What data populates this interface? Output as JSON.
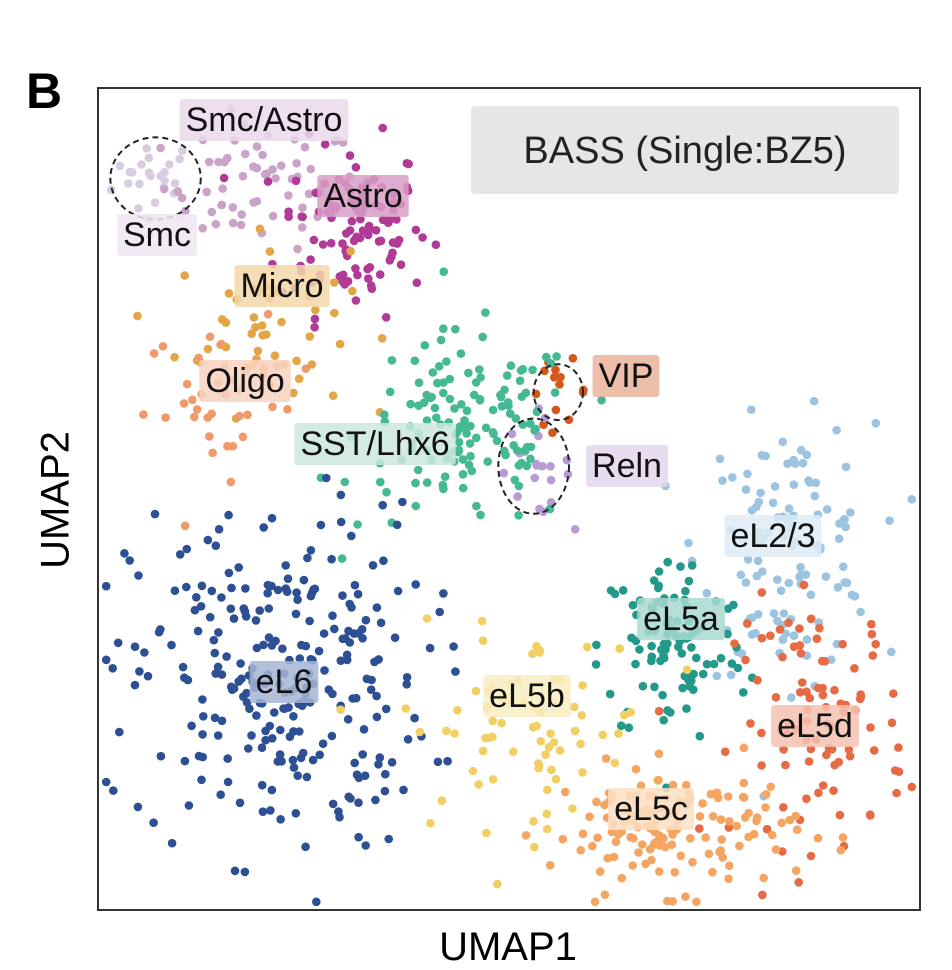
{
  "panel_label": "B",
  "chart_data": {
    "type": "scatter",
    "title": "BASS (Single:BZ5)",
    "xlabel": "UMAP1",
    "ylabel": "UMAP2",
    "xlim": [
      0,
      100
    ],
    "ylim": [
      0,
      100
    ],
    "grid": false,
    "legend": "none",
    "annotation_box_location": "top-right",
    "clusters": [
      {
        "name": "Smc",
        "color": "#d9cce0",
        "label_bg": "#efe6f2",
        "center": [
          7,
          89
        ],
        "spread": [
          3.5,
          3.5
        ],
        "count": 25,
        "ring": true,
        "ring_radius": [
          5.5,
          5
        ]
      },
      {
        "name": "Smc/Astro",
        "color": "#c9a4c8",
        "label_bg": "#ead9ea",
        "center": [
          20,
          88
        ],
        "spread": [
          8,
          5
        ],
        "count": 60,
        "ring": false
      },
      {
        "name": "Astro",
        "color": "#b03a96",
        "label_bg": "#d89dc6",
        "center": [
          31,
          83
        ],
        "spread": [
          6,
          7
        ],
        "count": 110,
        "ring": false
      },
      {
        "name": "Micro",
        "color": "#e2a646",
        "label_bg": "#f3d7a8",
        "center": [
          20,
          71
        ],
        "spread": [
          7,
          7
        ],
        "count": 55,
        "ring": false
      },
      {
        "name": "Oligo",
        "color": "#f09a6c",
        "label_bg": "#f8d2bf",
        "center": [
          16,
          62
        ],
        "spread": [
          7,
          6
        ],
        "count": 35,
        "ring": false
      },
      {
        "name": "VIP",
        "color": "#d4571e",
        "label_bg": "#eab49c",
        "center": [
          56,
          63
        ],
        "spread": [
          2.5,
          2.5
        ],
        "count": 14,
        "ring": true,
        "ring_radius": [
          3,
          3.4
        ]
      },
      {
        "name": "Reln",
        "color": "#b79bd2",
        "label_bg": "#e4d6ee",
        "center": [
          53,
          54
        ],
        "spread": [
          3,
          4
        ],
        "count": 20,
        "ring": true,
        "ring_radius": [
          4.3,
          5.8
        ]
      },
      {
        "name": "SST/Lhx6",
        "color": "#45b894",
        "label_bg": "#cbe8de",
        "center": [
          45,
          58
        ],
        "spread": [
          9,
          8
        ],
        "count": 140,
        "ring": false
      },
      {
        "name": "eL2/3",
        "color": "#9cc3e0",
        "label_bg": "#deebf5",
        "center": [
          84,
          44
        ],
        "spread": [
          7,
          10
        ],
        "count": 120,
        "ring": false
      },
      {
        "name": "eL5a",
        "color": "#22998a",
        "label_bg": "#a9d9d1",
        "center": [
          70,
          32
        ],
        "spread": [
          6,
          8
        ],
        "count": 95,
        "ring": false
      },
      {
        "name": "eL6",
        "color": "#2d4f93",
        "label_bg": "#a4b5d6",
        "center": [
          22,
          28
        ],
        "spread": [
          12,
          14
        ],
        "count": 270,
        "ring": false
      },
      {
        "name": "eL5b",
        "color": "#f1cf63",
        "label_bg": "#f8ecc2",
        "center": [
          52,
          22
        ],
        "spread": [
          10,
          8
        ],
        "count": 75,
        "ring": false
      },
      {
        "name": "eL5d",
        "color": "#e66a44",
        "label_bg": "#f4c2b2",
        "center": [
          88,
          23
        ],
        "spread": [
          7,
          10
        ],
        "count": 95,
        "ring": false
      },
      {
        "name": "eL5c",
        "color": "#f4a561",
        "label_bg": "#fbdfc4",
        "center": [
          70,
          10
        ],
        "spread": [
          10,
          5
        ],
        "count": 140,
        "ring": false
      }
    ]
  },
  "colors": {
    "axis": "#333333",
    "annotation_bg": "#e6e6e6"
  }
}
